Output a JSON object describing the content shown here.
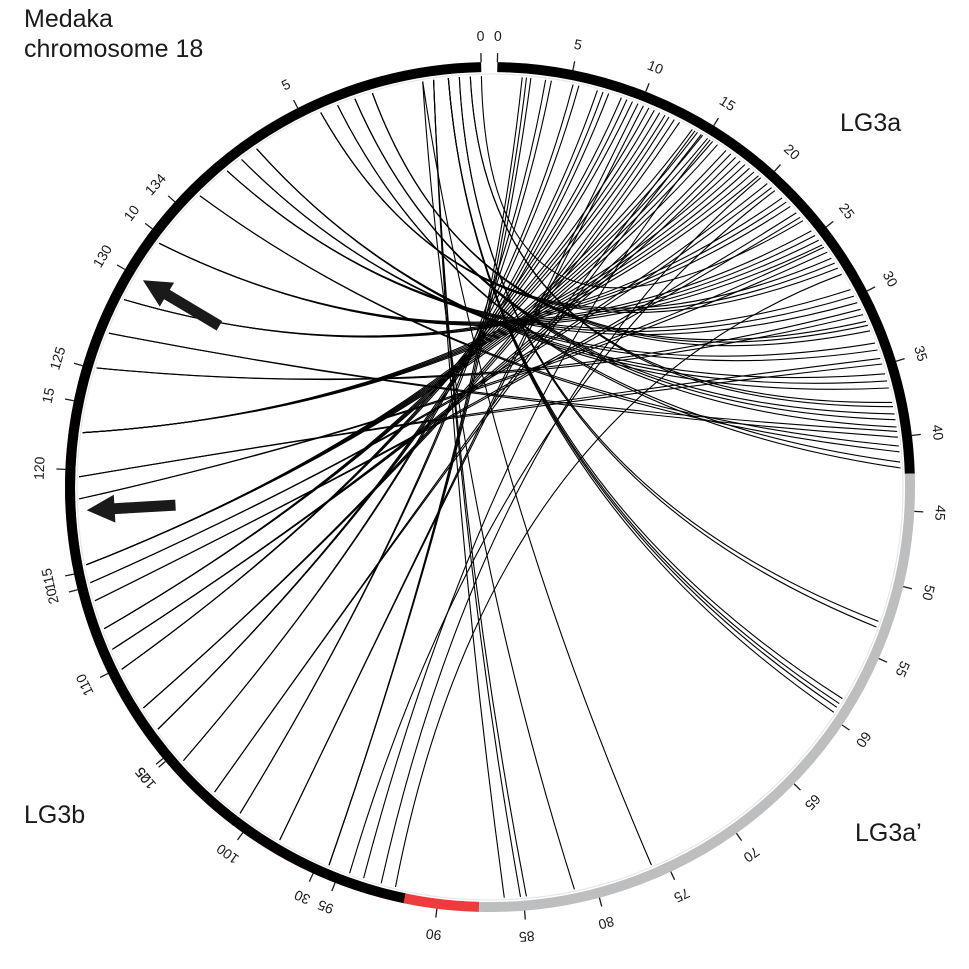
{
  "labels": {
    "medaka_line1": "Medaka",
    "medaka_line2": "chromosome 18",
    "lg3a": "LG3a",
    "lg3a_prime": "LG3a’",
    "lg3b": "LG3b"
  },
  "colors": {
    "medaka": "#000000",
    "lg3a": "#000000",
    "lg3a_prime": "#bcbec0",
    "lg3b": "#ee3b3e",
    "links": "#000000"
  },
  "chart_data": {
    "type": "circos",
    "segments": [
      {
        "id": "lg3",
        "start": 0,
        "end": 88,
        "color_parts": [
          {
            "from": 0,
            "to": 42.5,
            "color": "#000000"
          },
          {
            "from": 42.5,
            "to": 88,
            "color": "#bcbec0"
          }
        ],
        "ticks": [
          0,
          5,
          10,
          15,
          20,
          25,
          30,
          35,
          40,
          45,
          50,
          55,
          60,
          65,
          70,
          75,
          80,
          85
        ]
      },
      {
        "id": "lg3b",
        "start": 88,
        "end": 136,
        "color": "#ee3b3e",
        "ticks": [
          90,
          95,
          100,
          105,
          110,
          115,
          120,
          125,
          130,
          134
        ]
      },
      {
        "id": "medaka18",
        "start": 0,
        "end": 32.5,
        "color": "#000000",
        "ticks": [
          0,
          5,
          10,
          15,
          20,
          25,
          30
        ]
      }
    ],
    "links": [
      {
        "from": 0.0,
        "to": [
          23.7
        ]
      },
      {
        "from": 0.3,
        "to": [
          37.6,
          37.9
        ]
      },
      {
        "from": 0.6,
        "to": [
          52.7,
          53.1
        ]
      },
      {
        "from": 0.9,
        "to": [
          58.5,
          58.9,
          59.2,
          59.6
        ]
      },
      {
        "from": 3.0,
        "to": [
          31.8,
          32.1,
          32.5
        ]
      },
      {
        "from": 3.5,
        "to": [
          38.4,
          38.8,
          39.3
        ]
      },
      {
        "from": 4.0,
        "to": [
          41.7,
          42.1
        ]
      },
      {
        "from": 4.5,
        "to": [
          26.9,
          27.3,
          27.7
        ]
      },
      {
        "from": 6.5,
        "to": [
          35.6,
          36.1,
          36.6
        ]
      },
      {
        "from": 7.0,
        "to": [
          33.4,
          33.9
        ]
      },
      {
        "from": 7.5,
        "to": [
          29.4,
          29.9,
          30.4
        ]
      },
      {
        "from": 8.5,
        "to": [
          40.6,
          41.0
        ]
      },
      {
        "from": 10.2,
        "to": [
          24.6,
          25.0,
          25.4,
          25.8
        ]
      },
      {
        "from": 12.0,
        "to": [
          21.6,
          22.0,
          22.4
        ]
      },
      {
        "from": 13.0,
        "to": [
          39.6,
          40.0
        ]
      },
      {
        "from": 14.0,
        "to": [
          30.9,
          31.3
        ]
      },
      {
        "from": 15.8,
        "to": [
          17.8,
          18.2,
          18.6,
          19.0,
          19.4
        ]
      },
      {
        "from": 17.0,
        "to": [
          34.5,
          34.9
        ]
      },
      {
        "from": 17.6,
        "to": [
          26.0,
          26.4
        ]
      },
      {
        "from": 19.4,
        "to": [
          13.9,
          14.3,
          14.7,
          15.1,
          15.5,
          15.9
        ]
      },
      {
        "from": 19.9,
        "to": [
          20.2,
          20.6
        ]
      },
      {
        "from": 20.4,
        "to": [
          23.0,
          23.4
        ]
      },
      {
        "from": 21.2,
        "to": [
          10.6,
          11.0,
          11.4,
          11.8
        ]
      },
      {
        "from": 21.8,
        "to": [
          16.6,
          17.0,
          17.4
        ]
      },
      {
        "from": 22.4,
        "to": [
          8.6,
          9.0,
          9.4
        ]
      },
      {
        "from": 23.6,
        "to": [
          12.1,
          12.5,
          12.9
        ]
      },
      {
        "from": 24.3,
        "to": [
          6.9,
          7.3,
          7.7
        ]
      },
      {
        "from": 25.4,
        "to": [
          5.2,
          5.6
        ]
      },
      {
        "from": 26.6,
        "to": [
          14.1,
          14.6
        ]
      },
      {
        "from": 27.5,
        "to": [
          3.3,
          3.7
        ]
      },
      {
        "from": 28.8,
        "to": [
          9.8,
          10.2
        ]
      },
      {
        "from": 30.3,
        "to": [
          1.7,
          2.0,
          2.3
        ]
      },
      {
        "from": 30.9,
        "to": [
          20.9
        ]
      },
      {
        "from": 31.3,
        "to": [
          15.3
        ]
      },
      {
        "from": 31.8,
        "to": [
          19.6
        ]
      },
      {
        "from": 32.2,
        "to": [
          28.2
        ]
      },
      {
        "from": 1.3,
        "to": [
          84.8,
          85.2,
          86.3
        ]
      },
      {
        "from": 1.6,
        "to": [
          81.5,
          76.0
        ]
      }
    ],
    "arrows": [
      {
        "points_to": 130
      },
      {
        "points_to": 118
      }
    ]
  }
}
